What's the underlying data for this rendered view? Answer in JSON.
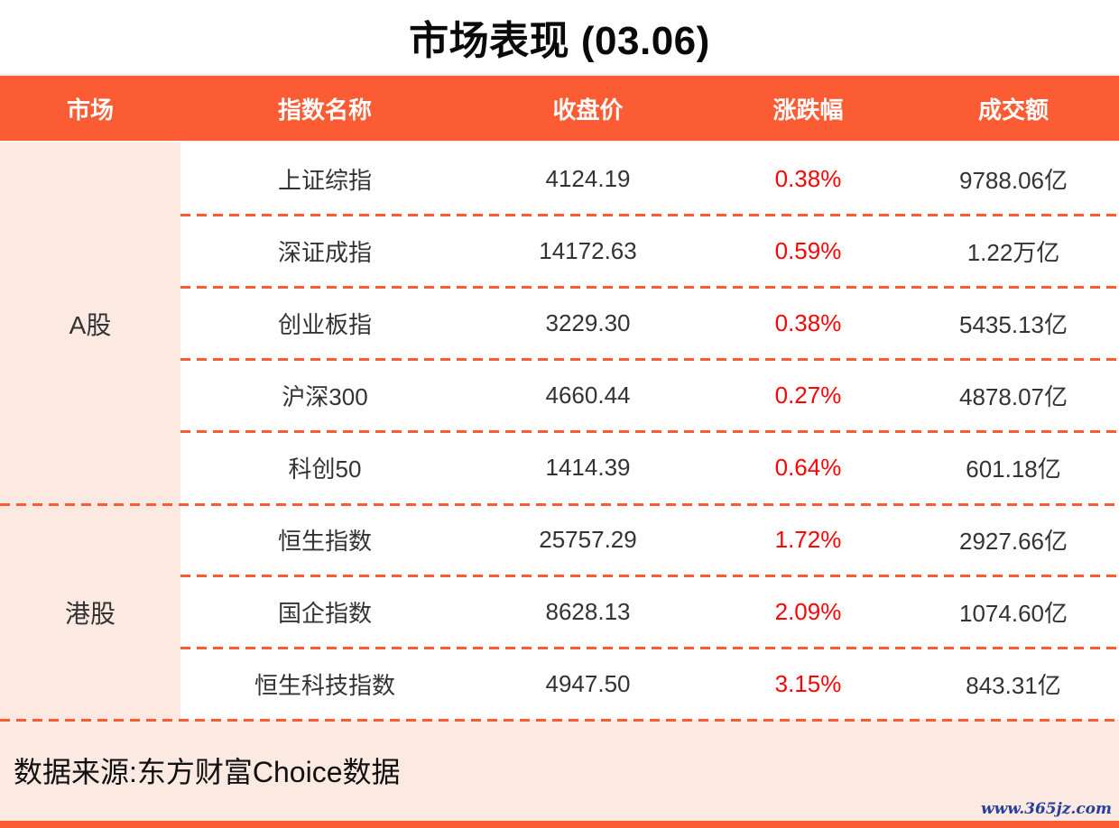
{
  "title": "市场表现 (03.06)",
  "table": {
    "headers": [
      "市场",
      "指数名称",
      "收盘价",
      "涨跌幅",
      "成交额"
    ],
    "sections": [
      {
        "market": "A股",
        "rows": [
          {
            "name": "上证综指",
            "close": "4124.19",
            "change": "0.38%",
            "turnover": "9788.06亿"
          },
          {
            "name": "深证成指",
            "close": "14172.63",
            "change": "0.59%",
            "turnover": "1.22万亿"
          },
          {
            "name": "创业板指",
            "close": "3229.30",
            "change": "0.38%",
            "turnover": "5435.13亿"
          },
          {
            "name": "沪深300",
            "close": "4660.44",
            "change": "0.27%",
            "turnover": "4878.07亿"
          },
          {
            "name": "科创50",
            "close": "1414.39",
            "change": "0.64%",
            "turnover": "601.18亿"
          }
        ]
      },
      {
        "market": "港股",
        "rows": [
          {
            "name": "恒生指数",
            "close": "25757.29",
            "change": "1.72%",
            "turnover": "2927.66亿"
          },
          {
            "name": "国企指数",
            "close": "8628.13",
            "change": "2.09%",
            "turnover": "1074.60亿"
          },
          {
            "name": "恒生科技指数",
            "close": "4947.50",
            "change": "3.15%",
            "turnover": "843.31亿"
          }
        ]
      }
    ]
  },
  "footer": {
    "source": "数据来源:东方财富Choice数据",
    "watermark": "www.365jz.com"
  },
  "colors": {
    "accent_orange": "#FB5C33",
    "light_pink": "#FCE9E2",
    "change_red": "#FB0505",
    "watermark_navy": "#26409C"
  },
  "chart_data": {
    "type": "table",
    "title": "市场表现 (03.06)",
    "columns": [
      "市场",
      "指数名称",
      "收盘价",
      "涨跌幅",
      "成交额"
    ],
    "rows": [
      [
        "A股",
        "上证综指",
        4124.19,
        "0.38%",
        "9788.06亿"
      ],
      [
        "A股",
        "深证成指",
        14172.63,
        "0.59%",
        "1.22万亿"
      ],
      [
        "A股",
        "创业板指",
        3229.3,
        "0.38%",
        "5435.13亿"
      ],
      [
        "A股",
        "沪深300",
        4660.44,
        "0.27%",
        "4878.07亿"
      ],
      [
        "A股",
        "科创50",
        1414.39,
        "0.64%",
        "601.18亿"
      ],
      [
        "港股",
        "恒生指数",
        25757.29,
        "1.72%",
        "2927.66亿"
      ],
      [
        "港股",
        "国企指数",
        8628.13,
        "2.09%",
        "1074.60亿"
      ],
      [
        "港股",
        "恒生科技指数",
        4947.5,
        "3.15%",
        "843.31亿"
      ]
    ],
    "notes": "涨跌幅 values rendered in red; source footer: 数据来源:东方财富Choice数据"
  }
}
